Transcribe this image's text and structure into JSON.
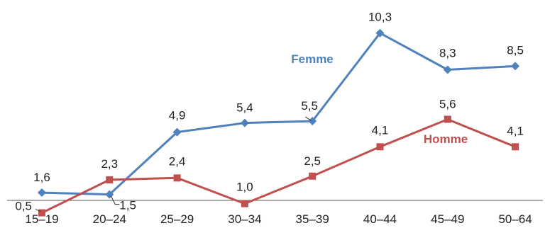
{
  "chart_data": {
    "type": "line",
    "categories": [
      "15–19",
      "20–24",
      "25–29",
      "30–34",
      "35–39",
      "40–44",
      "45–49",
      "50–64"
    ],
    "series": [
      {
        "name": "Femme",
        "color": "#4F81BD",
        "marker": "diamond",
        "values": [
          1.6,
          1.5,
          4.9,
          5.4,
          5.5,
          10.3,
          8.3,
          8.5
        ],
        "labels": [
          "1,6",
          "1,5",
          "4,9",
          "5,4",
          "5,5",
          "10,3",
          "8,3",
          "8,5"
        ]
      },
      {
        "name": "Homme",
        "color": "#C0504D",
        "marker": "square",
        "values": [
          0.5,
          2.3,
          2.4,
          1.0,
          2.5,
          4.1,
          5.6,
          4.1
        ],
        "labels": [
          "0,5",
          "2,3",
          "2,4",
          "1,0",
          "2,5",
          "4,1",
          "5,6",
          "4,1"
        ]
      }
    ],
    "ylim": [
      0,
      11
    ],
    "grid": false,
    "legend": "inline"
  }
}
